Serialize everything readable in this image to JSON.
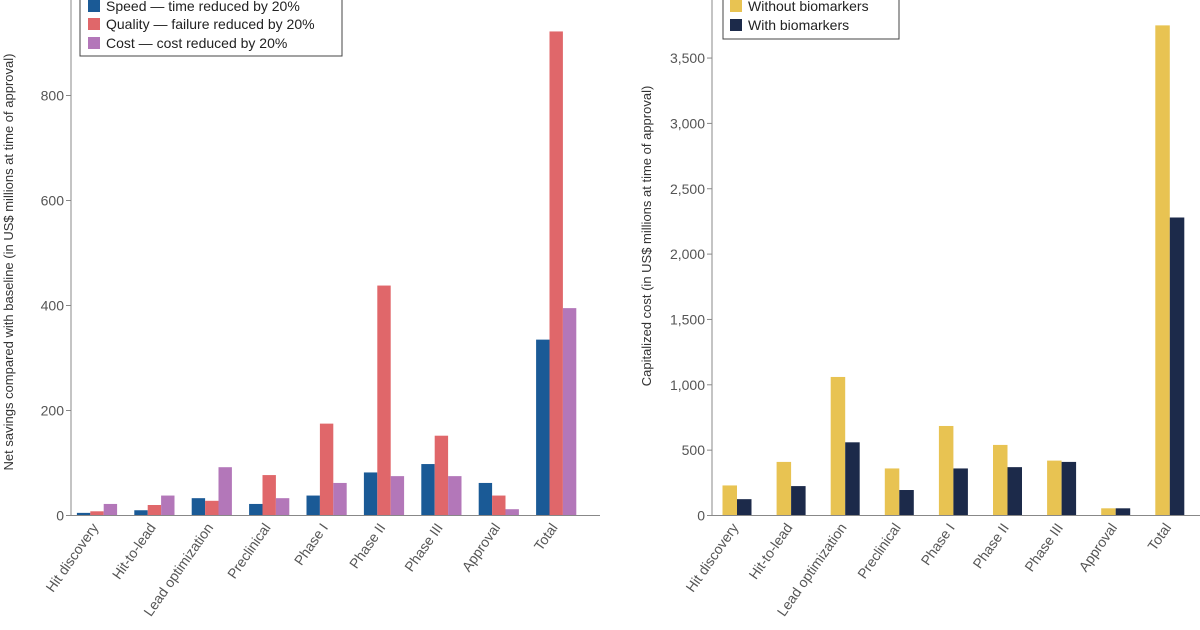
{
  "chart_data": [
    {
      "type": "bar",
      "ylabel": "Net savings compared with baseline (in US$ millions at time of approval)",
      "ylim": [
        0,
        950
      ],
      "yticks": [
        0,
        200,
        400,
        600,
        800
      ],
      "ytick_labels": [
        "0",
        "200",
        "400",
        "600",
        "800"
      ],
      "categories": [
        "Hit discovery",
        "Hit-to-lead",
        "Lead optimization",
        "Preclinical",
        "Phase I",
        "Phase II",
        "Phase III",
        "Approval",
        "Total"
      ],
      "legend_position": "top-left",
      "series": [
        {
          "name": "Speed — time reduced by 20%",
          "color": "#1a5a96",
          "values": [
            5,
            10,
            33,
            22,
            38,
            82,
            98,
            62,
            335
          ]
        },
        {
          "name": "Quality — failure reduced by 20%",
          "color": "#e0676a",
          "values": [
            8,
            20,
            28,
            77,
            175,
            438,
            152,
            38,
            922
          ]
        },
        {
          "name": "Cost — cost reduced by 20%",
          "color": "#b377b9",
          "values": [
            22,
            38,
            92,
            33,
            62,
            75,
            75,
            12,
            395
          ]
        }
      ]
    },
    {
      "type": "bar",
      "ylabel": "Capitalized cost (in US$ millions at time of approval)",
      "ylim": [
        0,
        3850
      ],
      "yticks": [
        0,
        500,
        1000,
        1500,
        2000,
        2500,
        3000,
        3500
      ],
      "ytick_labels": [
        "0",
        "500",
        "1,000",
        "1,500",
        "2,000",
        "2,500",
        "3,000",
        "3,500"
      ],
      "categories": [
        "Hit discovery",
        "Hit-to-lead",
        "Lead optimization",
        "Preclinical",
        "Phase I",
        "Phase II",
        "Phase III",
        "Approval",
        "Total"
      ],
      "legend_position": "top-left",
      "series": [
        {
          "name": "Without biomarkers",
          "color": "#e8c352",
          "values": [
            230,
            410,
            1060,
            360,
            685,
            540,
            420,
            55,
            3750
          ]
        },
        {
          "name": "With biomarkers",
          "color": "#1c2a4a",
          "values": [
            125,
            225,
            560,
            195,
            360,
            370,
            410,
            55,
            2280
          ]
        }
      ]
    }
  ]
}
